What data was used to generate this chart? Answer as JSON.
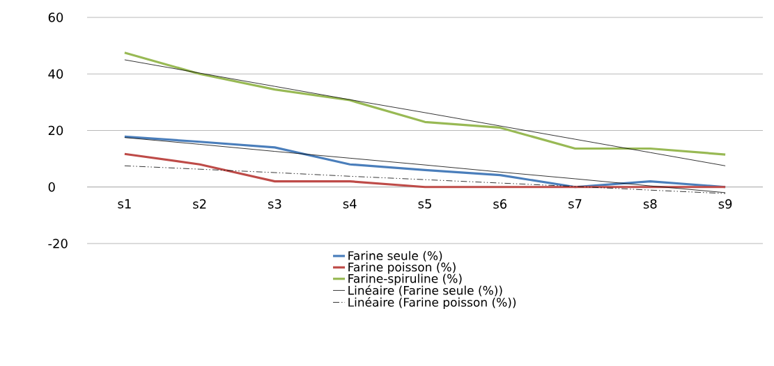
{
  "chart_data": {
    "type": "line",
    "categories": [
      "s1",
      "s2",
      "s3",
      "s4",
      "s5",
      "s6",
      "s7",
      "s8",
      "s9"
    ],
    "series": [
      {
        "name": "Farine seule (%)",
        "color": "#4a7ebb",
        "values": [
          17.8,
          16,
          14,
          8,
          6,
          4.2,
          0,
          2,
          0
        ]
      },
      {
        "name": "Farine poisson (%)",
        "color": "#be4b48",
        "values": [
          11.7,
          8,
          2,
          2,
          0,
          0,
          0,
          0,
          0
        ]
      },
      {
        "name": "Farine-spiruline (%)",
        "color": "#98b954",
        "values": [
          47.5,
          40,
          34.5,
          30.7,
          23,
          21,
          13.6,
          13.6,
          11.5
        ]
      },
      {
        "name": "Linéaire (Farine seule (%))",
        "color": "#000000",
        "line_style": "solid",
        "values": [
          17.5,
          15.1,
          12.6,
          10.2,
          7.8,
          5.3,
          2.9,
          0.4,
          -2.0
        ]
      },
      {
        "name": "Linéaire (Farine poisson (%))",
        "color": "#000000",
        "line_style": "dashdot",
        "values": [
          7.5,
          6.3,
          5.1,
          3.8,
          2.6,
          1.4,
          0.2,
          -1.1,
          -2.3
        ]
      },
      {
        "color": "#000000",
        "line_style": "solid",
        "values": [
          45,
          40.3,
          35.6,
          30.9,
          26.3,
          21.6,
          16.9,
          12.2,
          7.5
        ]
      }
    ],
    "ylim": [
      -20,
      60
    ],
    "yticks": [
      -20,
      0,
      20,
      40,
      60
    ],
    "grid": "y",
    "legend": "bottom",
    "marker": "none"
  }
}
